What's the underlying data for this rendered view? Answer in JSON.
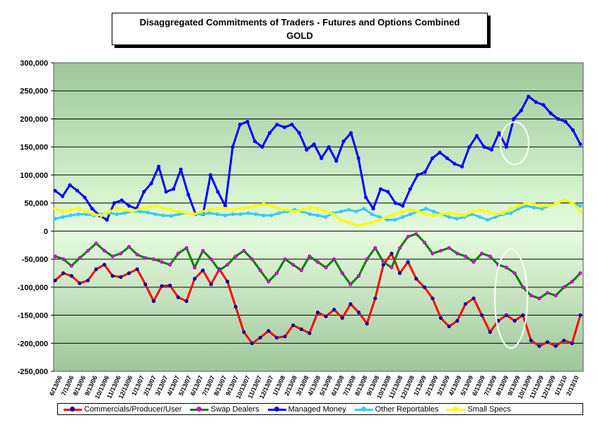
{
  "chart_data": {
    "type": "line",
    "title": "Disaggregated Commitments of Traders - Futures and Options Combined",
    "subtitle": "GOLD",
    "ylim": [
      -250000,
      300000
    ],
    "y_ticks": [
      "300,000",
      "250,000",
      "200,000",
      "150,000",
      "100,000",
      "50,000",
      "0",
      "-50,000",
      "-100,000",
      "-150,000",
      "-200,000",
      "-250,000"
    ],
    "x_ticks": [
      "6/13/06",
      "7/13/06",
      "8/13/06",
      "9/13/06",
      "10/13/06",
      "11/13/06",
      "12/13/06",
      "1/13/07",
      "2/13/07",
      "3/13/07",
      "4/13/07",
      "5/13/07",
      "6/13/07",
      "7/13/07",
      "8/13/07",
      "9/13/07",
      "10/13/07",
      "11/13/07",
      "12/13/07",
      "1/13/08",
      "2/13/08",
      "3/13/08",
      "4/13/08",
      "5/13/08",
      "6/13/08",
      "7/13/08",
      "8/13/08",
      "9/13/08",
      "10/13/08",
      "11/13/08",
      "12/13/08",
      "1/13/09",
      "2/13/09",
      "3/13/09",
      "4/13/09",
      "5/13/09",
      "6/13/09",
      "7/13/09",
      "8/13/09",
      "9/13/09",
      "10/13/09",
      "11/13/09",
      "12/13/09",
      "1/13/10",
      "2/13/10"
    ],
    "legend_position": "bottom",
    "series": [
      {
        "name": "Commercials/Producer/User",
        "color": "#ff0000",
        "marker": "#0000aa",
        "values": [
          -88000,
          -75000,
          -80000,
          -93000,
          -88000,
          -68000,
          -60000,
          -80000,
          -82000,
          -75000,
          -68000,
          -95000,
          -125000,
          -98000,
          -97000,
          -118000,
          -125000,
          -85000,
          -70000,
          -95000,
          -68000,
          -90000,
          -135000,
          -180000,
          -200000,
          -190000,
          -178000,
          -190000,
          -188000,
          -168000,
          -175000,
          -182000,
          -145000,
          -152000,
          -140000,
          -155000,
          -130000,
          -145000,
          -165000,
          -120000,
          -60000,
          -40000,
          -75000,
          -55000,
          -85000,
          -100000,
          -120000,
          -155000,
          -170000,
          -160000,
          -130000,
          -120000,
          -150000,
          -180000,
          -160000,
          -150000,
          -160000,
          -150000,
          -195000,
          -205000,
          -198000,
          -205000,
          -195000,
          -200000,
          -150000
        ]
      },
      {
        "name": "Swap Dealers",
        "color": "#008000",
        "marker": "#cc00cc",
        "values": [
          -45000,
          -50000,
          -62000,
          -48000,
          -35000,
          -22000,
          -35000,
          -45000,
          -40000,
          -28000,
          -42000,
          -48000,
          -50000,
          -55000,
          -60000,
          -40000,
          -30000,
          -65000,
          -35000,
          -50000,
          -70000,
          -60000,
          -45000,
          -35000,
          -50000,
          -70000,
          -90000,
          -75000,
          -50000,
          -60000,
          -70000,
          -45000,
          -55000,
          -65000,
          -50000,
          -75000,
          -95000,
          -80000,
          -50000,
          -30000,
          -55000,
          -65000,
          -30000,
          -10000,
          -5000,
          -20000,
          -40000,
          -35000,
          -30000,
          -40000,
          -45000,
          -55000,
          -40000,
          -45000,
          -60000,
          -65000,
          -75000,
          -100000,
          -115000,
          -120000,
          -110000,
          -115000,
          -100000,
          -90000,
          -75000
        ]
      },
      {
        "name": "Managed Money",
        "color": "#0000ff",
        "marker": "#0000ff",
        "values": [
          72000,
          62000,
          82000,
          72000,
          60000,
          40000,
          28000,
          20000,
          50000,
          55000,
          45000,
          40000,
          70000,
          85000,
          115000,
          70000,
          75000,
          110000,
          65000,
          30000,
          30000,
          100000,
          70000,
          45000,
          150000,
          190000,
          195000,
          160000,
          150000,
          175000,
          190000,
          185000,
          190000,
          175000,
          145000,
          155000,
          130000,
          150000,
          125000,
          160000,
          175000,
          130000,
          60000,
          40000,
          75000,
          70000,
          50000,
          45000,
          75000,
          100000,
          105000,
          130000,
          140000,
          130000,
          120000,
          115000,
          150000,
          170000,
          150000,
          145000,
          175000,
          150000,
          200000,
          215000,
          240000,
          230000,
          225000,
          210000,
          200000,
          195000,
          180000,
          155000
        ]
      },
      {
        "name": "Other Reportables",
        "color": "#33ccff",
        "marker": "#33ccff",
        "values": [
          22000,
          25000,
          28000,
          30000,
          30000,
          28000,
          30000,
          32000,
          30000,
          32000,
          35000,
          35000,
          33000,
          30000,
          28000,
          27000,
          30000,
          32000,
          30000,
          30000,
          32000,
          30000,
          28000,
          30000,
          30000,
          32000,
          30000,
          28000,
          28000,
          32000,
          35000,
          38000,
          35000,
          30000,
          28000,
          25000,
          32000,
          35000,
          38000,
          35000,
          40000,
          30000,
          25000,
          20000,
          20000,
          25000,
          30000,
          35000,
          40000,
          35000,
          30000,
          25000,
          22000,
          25000,
          30000,
          25000,
          20000,
          25000,
          30000,
          32000,
          40000,
          45000,
          42000,
          40000,
          45000,
          50000,
          55000,
          50000,
          45000
        ]
      },
      {
        "name": "Small Specs",
        "color": "#ffff00",
        "marker": "#ffff00",
        "values": [
          40000,
          35000,
          38000,
          40000,
          35000,
          30000,
          28000,
          35000,
          40000,
          38000,
          35000,
          40000,
          42000,
          45000,
          40000,
          38000,
          35000,
          32000,
          30000,
          35000,
          38000,
          40000,
          40000,
          38000,
          40000,
          42000,
          45000,
          48000,
          45000,
          40000,
          38000,
          35000,
          38000,
          42000,
          40000,
          35000,
          30000,
          20000,
          15000,
          10000,
          12000,
          15000,
          20000,
          25000,
          30000,
          35000,
          38000,
          35000,
          30000,
          28000,
          30000,
          32000,
          30000,
          28000,
          35000,
          38000,
          35000,
          30000,
          32000,
          40000,
          45000,
          50000,
          48000,
          45000,
          45000,
          50000,
          55000,
          50000,
          35000
        ]
      }
    ]
  }
}
